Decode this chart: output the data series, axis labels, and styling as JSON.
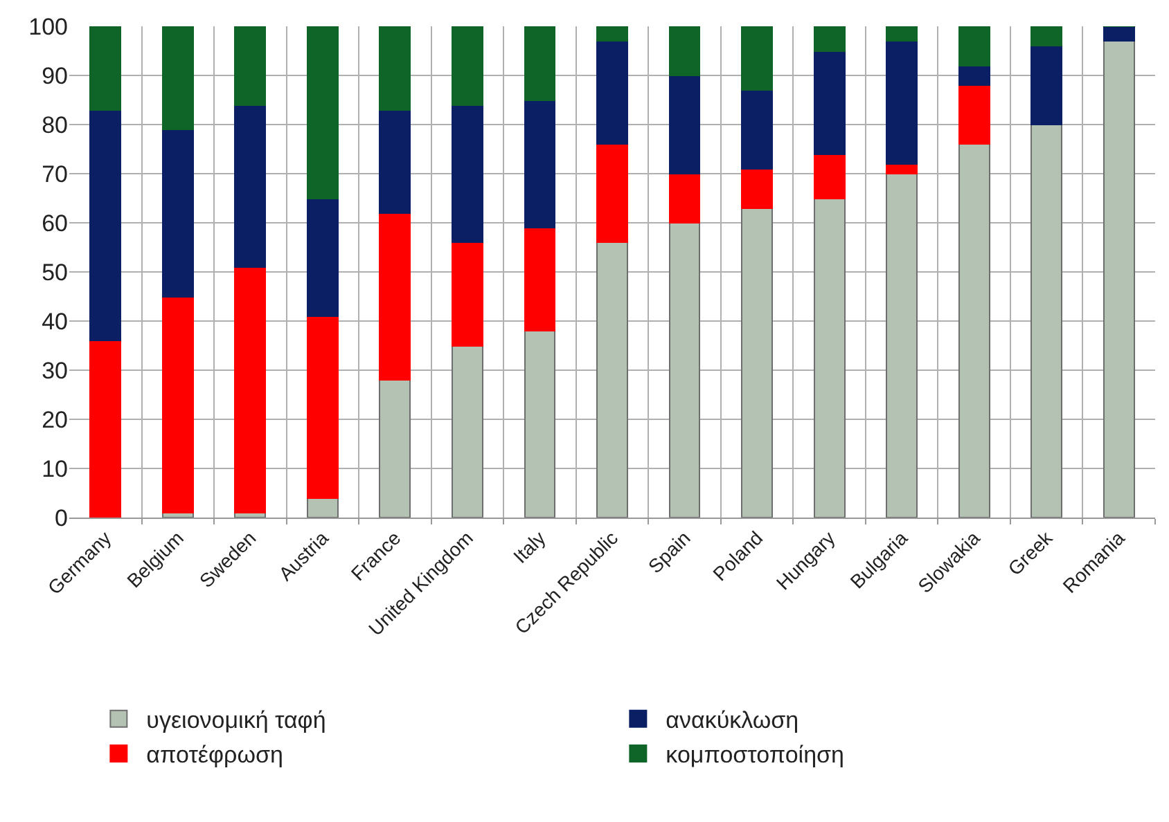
{
  "chart_data": {
    "type": "bar",
    "stacked": true,
    "categories": [
      "Germany",
      "Belgium",
      "Sweden",
      "Austria",
      "France",
      "United Kingdom",
      "Italy",
      "Czech Republic",
      "Spain",
      "Poland",
      "Hungary",
      "Bulgaria",
      "Slowakia",
      "Greek",
      "Romania"
    ],
    "series": [
      {
        "name": "υγειονομική ταφή",
        "color": "#b4c2b4",
        "values": [
          0,
          1,
          1,
          4,
          28,
          35,
          38,
          56,
          60,
          63,
          65,
          70,
          76,
          80,
          97
        ]
      },
      {
        "name": "αποτέφρωση",
        "color": "#ff0000",
        "values": [
          36,
          44,
          50,
          37,
          34,
          21,
          21,
          20,
          10,
          8,
          9,
          2,
          12,
          0,
          0
        ]
      },
      {
        "name": "ανακύκλωση",
        "color": "#0a1f64",
        "values": [
          47,
          34,
          33,
          24,
          21,
          28,
          26,
          21,
          20,
          16,
          21,
          25,
          4,
          16,
          3
        ]
      },
      {
        "name": "κομποστοποίηση",
        "color": "#0f6428",
        "values": [
          17,
          21,
          16,
          35,
          17,
          16,
          15,
          3,
          10,
          13,
          5,
          3,
          8,
          4,
          0
        ]
      }
    ],
    "ylim": [
      0,
      100
    ],
    "yticks": [
      0,
      10,
      20,
      30,
      40,
      50,
      60,
      70,
      80,
      90,
      100
    ],
    "grid": true,
    "legend": "bottom"
  }
}
